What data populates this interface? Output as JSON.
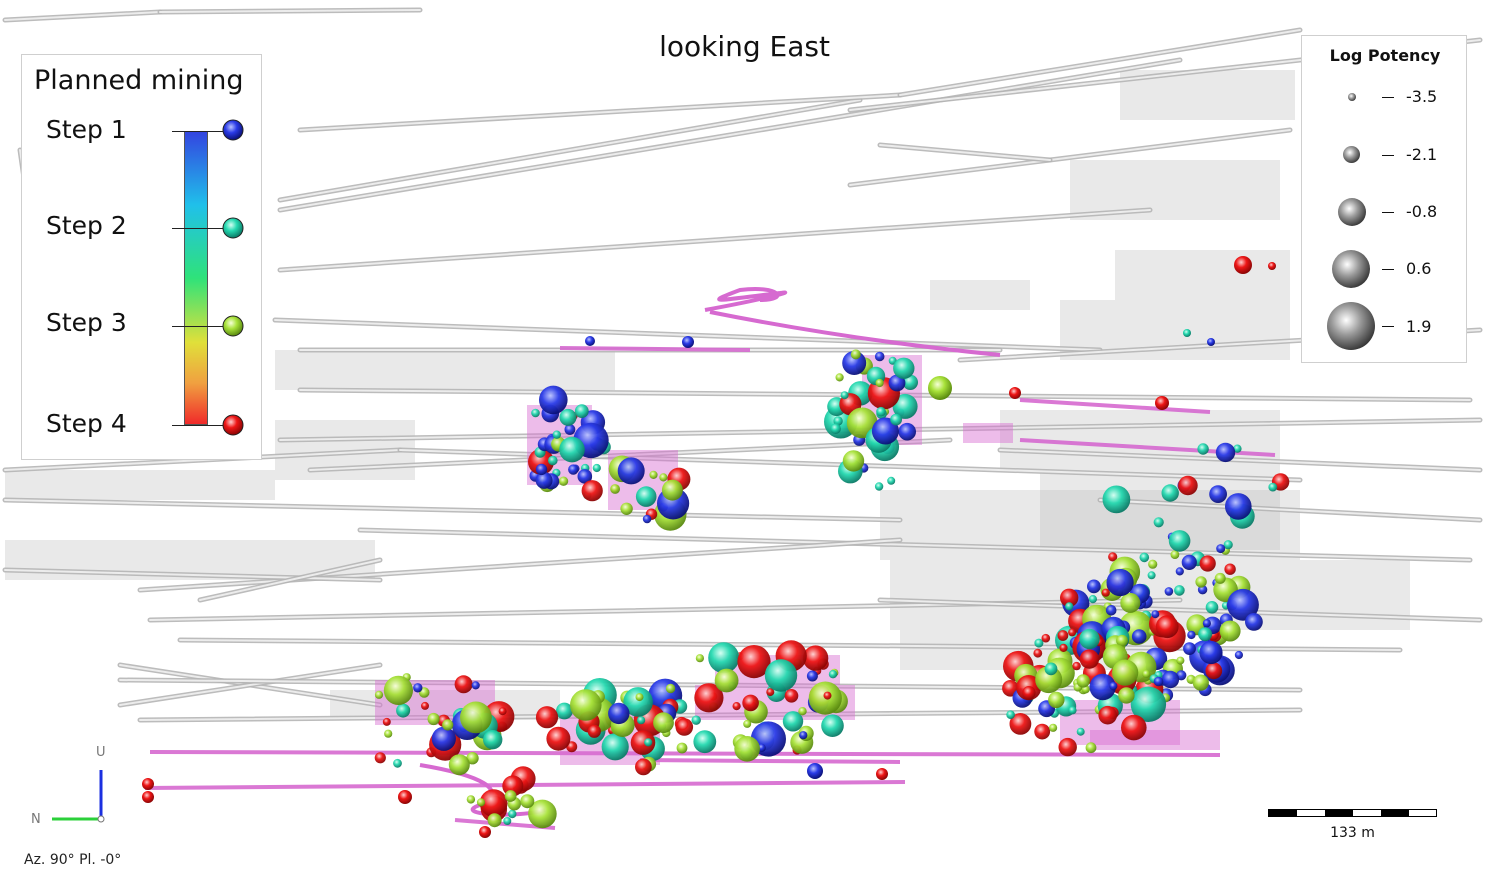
{
  "view": {
    "title": "looking East",
    "orientation": "Az. 90° Pl. -0°",
    "axis_north_label": "N",
    "axis_up_label": "U",
    "scale_label": "133 m"
  },
  "legend_steps": {
    "title": "Planned mining",
    "steps": [
      {
        "label": "Step 1",
        "color": "#1f2fe6"
      },
      {
        "label": "Step 2",
        "color": "#27e0b0"
      },
      {
        "label": "Step 3",
        "color": "#a8e63a"
      },
      {
        "label": "Step 4",
        "color": "#ee1111"
      }
    ]
  },
  "legend_potency": {
    "title": "Log Potency",
    "entries": [
      "-3.5",
      "-2.1",
      "-0.8",
      "0.6",
      "1.9"
    ]
  },
  "colors": {
    "tunnel": "#b5b5b5",
    "stope": "#c0c0c0",
    "drive": "#d66ad0"
  }
}
